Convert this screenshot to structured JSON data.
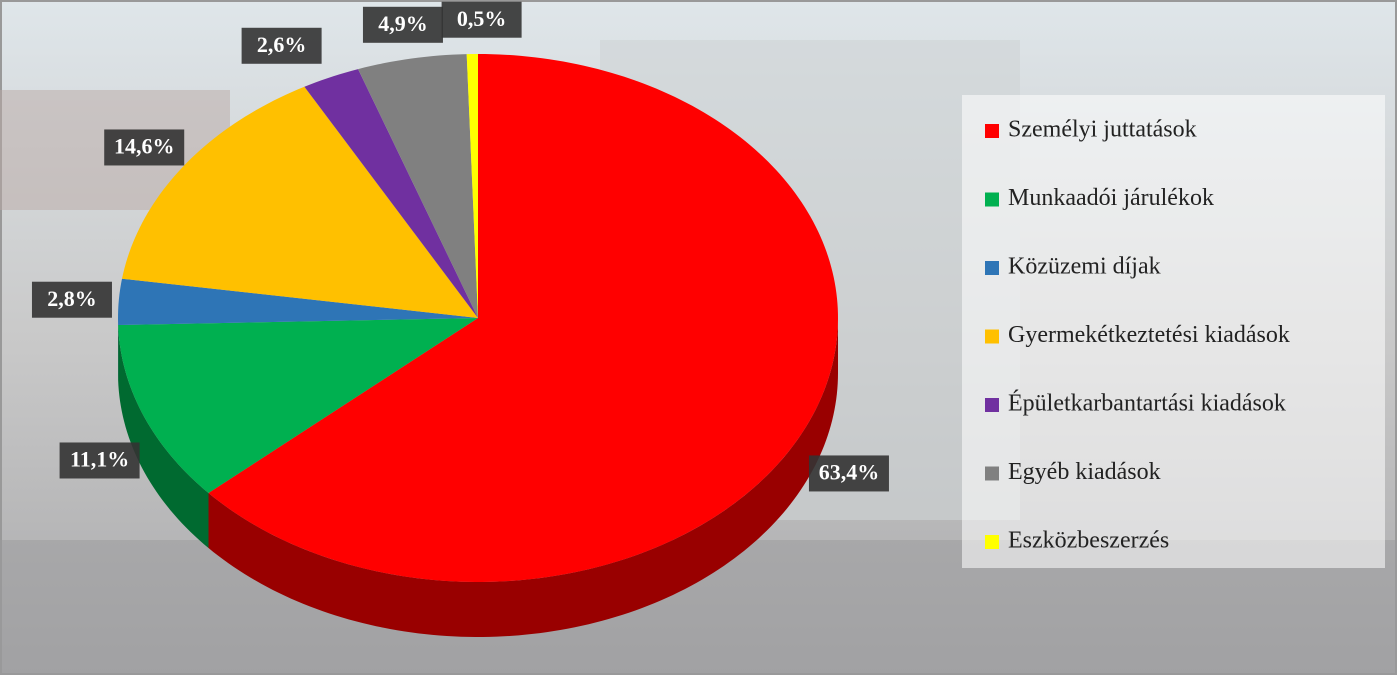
{
  "chart_data": {
    "type": "pie",
    "categories": [
      "Személyi juttatások",
      "Munkaadói járulékok",
      "Közüzemi díjak",
      "Gyermekétkeztetési kiadások",
      "Épületkarbantartási kiadások",
      "Egyéb kiadások",
      "Eszközbeszerzés"
    ],
    "values": [
      63.4,
      11.1,
      2.8,
      14.6,
      2.6,
      4.9,
      0.5
    ],
    "value_labels": [
      "63,4%",
      "11,1%",
      "2,8%",
      "14,6%",
      "2,6%",
      "4,9%",
      "0,5%"
    ],
    "colors": [
      "#ff0000",
      "#00b050",
      "#2e75b6",
      "#ffc000",
      "#7030a0",
      "#808080",
      "#ffff00"
    ],
    "legend": "right"
  }
}
